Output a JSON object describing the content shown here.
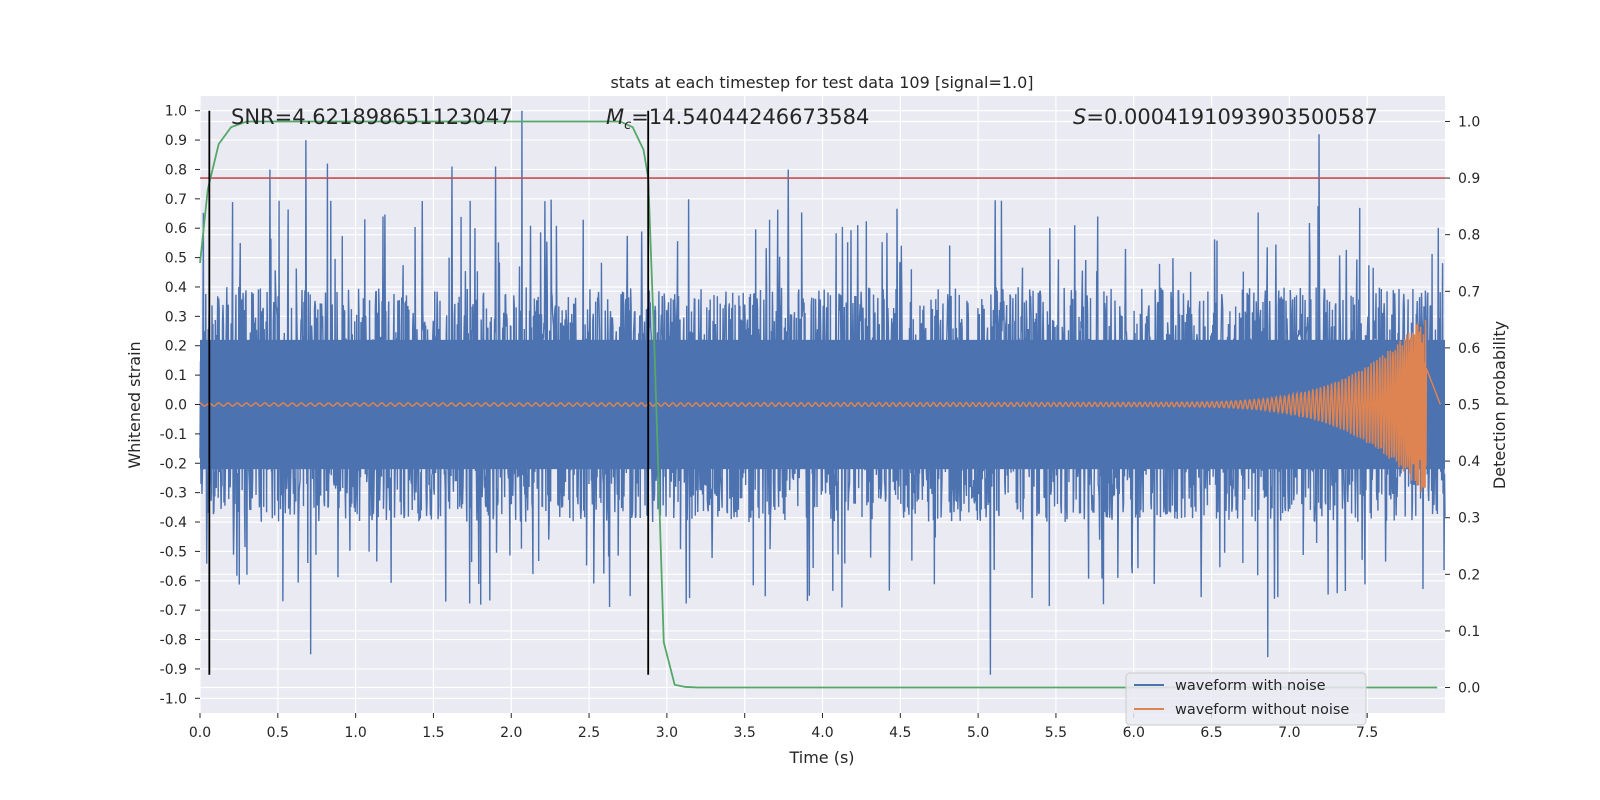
{
  "chart_data": {
    "type": "line",
    "title": "stats at each timestep for test data 109 [signal=1.0]",
    "xlabel": "Time (s)",
    "ylabel": "Whitened strain",
    "y2label": "Detection probability",
    "xlim": [
      0.0,
      8.0
    ],
    "ylim": [
      -1.05,
      1.05
    ],
    "y2lim": [
      -0.045,
      1.045
    ],
    "xticks": [
      0.0,
      0.5,
      1.0,
      1.5,
      2.0,
      2.5,
      3.0,
      3.5,
      4.0,
      4.5,
      5.0,
      5.5,
      6.0,
      6.5,
      7.0,
      7.5
    ],
    "yticks": [
      -1.0,
      -0.9,
      -0.8,
      -0.7,
      -0.6,
      -0.5,
      -0.4,
      -0.3,
      -0.2,
      -0.1,
      0.0,
      0.1,
      0.2,
      0.3,
      0.4,
      0.5,
      0.6,
      0.7,
      0.8,
      0.9,
      1.0
    ],
    "y2ticks": [
      0.0,
      0.1,
      0.2,
      0.3,
      0.4,
      0.5,
      0.6,
      0.7,
      0.8,
      0.9,
      1.0
    ],
    "grid": true,
    "stats": {
      "snr_label": "SNR=4.621898651123047",
      "mc_symbol": "M",
      "mc_subscript": "c",
      "mc_value": "=14.54044246673584",
      "s_symbol": "S",
      "s_value": "=0.0004191093903500587"
    },
    "series": [
      {
        "name": "waveform with noise",
        "color": "#4c72b0",
        "kind": "noise",
        "time_range": [
          0.0,
          8.0
        ],
        "typical_amplitude": 0.4,
        "extreme_peaks": [
          {
            "t": 0.45,
            "v": 0.8
          },
          {
            "t": 0.68,
            "v": 0.9
          },
          {
            "t": 0.82,
            "v": 0.82
          },
          {
            "t": 1.62,
            "v": 0.81
          },
          {
            "t": 1.9,
            "v": 0.81
          },
          {
            "t": 2.07,
            "v": 1.0
          },
          {
            "t": 3.78,
            "v": 0.8
          },
          {
            "t": 7.19,
            "v": 0.92
          },
          {
            "t": 0.71,
            "v": -0.85
          },
          {
            "t": 5.08,
            "v": -0.92
          },
          {
            "t": 6.86,
            "v": -0.86
          }
        ]
      },
      {
        "name": "waveform without noise",
        "color": "#dd8452",
        "kind": "chirp",
        "time_range": [
          0.0,
          7.88
        ],
        "base_amplitude": 0.005,
        "peak_amplitude": 0.3,
        "cycles": 210
      },
      {
        "name": "detection probability",
        "color": "#55a868",
        "axis": "right",
        "x": [
          0.0,
          0.05,
          0.12,
          0.2,
          0.3,
          0.4,
          0.6,
          1.0,
          2.0,
          2.7,
          2.78,
          2.85,
          2.88,
          2.92,
          2.98,
          3.05,
          3.12,
          3.2,
          4.0,
          7.95
        ],
        "values": [
          0.75,
          0.88,
          0.96,
          0.99,
          1.0,
          1.0,
          1.0,
          1.0,
          1.0,
          1.0,
          0.99,
          0.95,
          0.9,
          0.6,
          0.08,
          0.005,
          0.001,
          0.0,
          0.0,
          0.0
        ]
      }
    ],
    "threshold": {
      "value": 0.9,
      "axis": "right",
      "color": "#c44e52"
    },
    "vertical_markers": [
      {
        "t": 0.06,
        "y_from": -0.92,
        "y_to": 1.0
      },
      {
        "t": 2.88,
        "y_from": -0.92,
        "y_to": 1.0
      }
    ],
    "legend": {
      "position": "lower-right",
      "entries": [
        {
          "label": "waveform with noise",
          "color": "#4c72b0"
        },
        {
          "label": "waveform without noise",
          "color": "#dd8452"
        }
      ]
    },
    "colors": {
      "plot_background": "#eaeaf2",
      "grid": "#ffffff",
      "marker": "#000000"
    }
  }
}
